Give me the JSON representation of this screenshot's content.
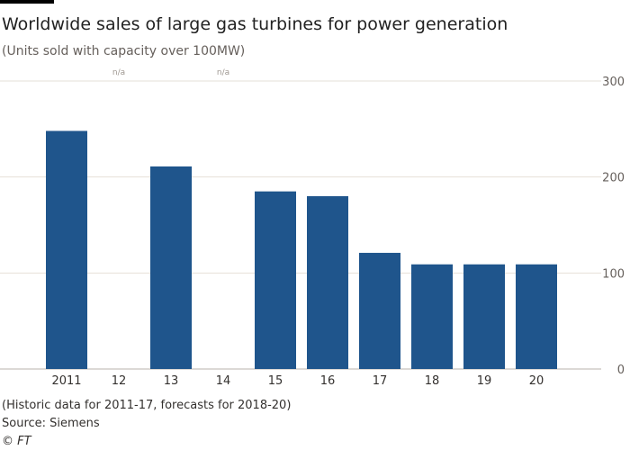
{
  "header": {
    "title": "Worldwide sales of large gas turbines for power generation",
    "subtitle": "(Units sold with capacity over 100MW)"
  },
  "footer": {
    "note": "(Historic data for 2011-17, forecasts for 2018-20)",
    "source": "Source: Siemens",
    "credit": "© FT"
  },
  "colors": {
    "bar": "#1f558c",
    "grid": "#e6e1d7",
    "axis_text": "#66605c",
    "na_text": "#9e9791"
  },
  "chart_data": {
    "type": "bar",
    "title": "Worldwide sales of large gas turbines for power generation",
    "ylabel": "Units sold with capacity over 100MW",
    "xlabel": "",
    "categories": [
      "2011",
      "12",
      "13",
      "14",
      "15",
      "16",
      "17",
      "18",
      "19",
      "20"
    ],
    "values": [
      248,
      null,
      211,
      null,
      185,
      180,
      121,
      109,
      109,
      109
    ],
    "na_label": "n/a",
    "ylim": [
      0,
      300
    ],
    "yticks": [
      0,
      100,
      200,
      300
    ],
    "grid": true,
    "y_axis_side": "right"
  }
}
